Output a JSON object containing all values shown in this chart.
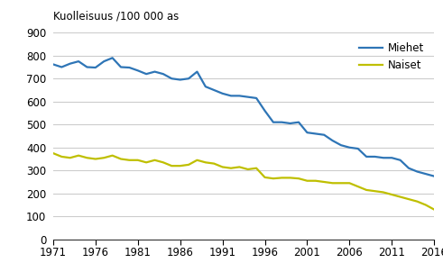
{
  "ylabel": "Kuolleisuus /100 000 as",
  "ylim": [
    0,
    900
  ],
  "yticks": [
    0,
    100,
    200,
    300,
    400,
    500,
    600,
    700,
    800,
    900
  ],
  "xlim": [
    1971,
    2016
  ],
  "xticks": [
    1971,
    1976,
    1981,
    1986,
    1991,
    1996,
    2001,
    2006,
    2011,
    2016
  ],
  "miehet_color": "#2E75B6",
  "naiset_color": "#BFBF00",
  "line_width": 1.6,
  "legend_labels": [
    "Miehet",
    "Naiset"
  ],
  "years": [
    1971,
    1972,
    1973,
    1974,
    1975,
    1976,
    1977,
    1978,
    1979,
    1980,
    1981,
    1982,
    1983,
    1984,
    1985,
    1986,
    1987,
    1988,
    1989,
    1990,
    1991,
    1992,
    1993,
    1994,
    1995,
    1996,
    1997,
    1998,
    1999,
    2000,
    2001,
    2002,
    2003,
    2004,
    2005,
    2006,
    2007,
    2008,
    2009,
    2010,
    2011,
    2012,
    2013,
    2014,
    2015,
    2016
  ],
  "miehet": [
    762,
    750,
    765,
    775,
    750,
    748,
    775,
    790,
    750,
    748,
    735,
    720,
    730,
    720,
    700,
    695,
    700,
    730,
    665,
    650,
    635,
    625,
    625,
    620,
    615,
    560,
    510,
    510,
    505,
    510,
    465,
    460,
    455,
    430,
    410,
    400,
    395,
    360,
    360,
    355,
    355,
    345,
    310,
    295,
    285,
    275
  ],
  "naiset": [
    375,
    360,
    355,
    365,
    355,
    350,
    355,
    365,
    350,
    345,
    345,
    335,
    345,
    335,
    320,
    320,
    325,
    345,
    335,
    330,
    315,
    310,
    315,
    305,
    310,
    270,
    265,
    268,
    268,
    265,
    255,
    255,
    250,
    245,
    245,
    245,
    230,
    215,
    210,
    205,
    195,
    185,
    175,
    165,
    150,
    130
  ],
  "background_color": "#ffffff",
  "grid_color": "#cccccc",
  "font_size": 8.5
}
